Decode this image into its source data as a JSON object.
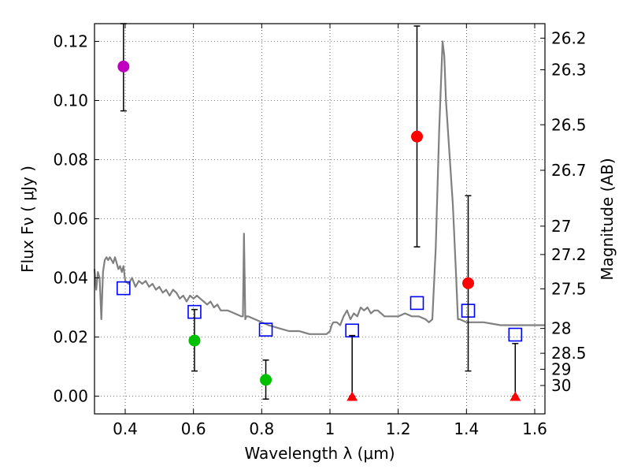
{
  "chart_data": {
    "type": "scatter",
    "xlabel": "Wavelength  λ (μm)",
    "ylabel": "Flux  Fν  ( μJy )",
    "ylabel_right": "Magnitude (AB)",
    "xlim": [
      0.31,
      1.63
    ],
    "ylim": [
      -0.006,
      0.126
    ],
    "grid": true,
    "x_ticks": [
      0.4,
      0.6,
      0.8,
      1.0,
      1.2,
      1.4,
      1.6
    ],
    "x_tick_labels": [
      "0.4",
      "0.6",
      "0.8",
      "1",
      "1.2",
      "1.4",
      "1.6"
    ],
    "y_ticks": [
      0.0,
      0.02,
      0.04,
      0.06,
      0.08,
      0.1,
      0.12
    ],
    "y_tick_labels": [
      "0.00",
      "0.02",
      "0.04",
      "0.06",
      "0.08",
      "0.10",
      "0.12"
    ],
    "mag_ticks": [
      {
        "label": "26.2",
        "flux": 0.1211
      },
      {
        "label": "26.3",
        "flux": 0.1104
      },
      {
        "label": "26.5",
        "flux": 0.0918
      },
      {
        "label": "26.7",
        "flux": 0.0764
      },
      {
        "label": "27",
        "flux": 0.0575
      },
      {
        "label": "27.2",
        "flux": 0.0479
      },
      {
        "label": "27.5",
        "flux": 0.0363
      },
      {
        "label": "28",
        "flux": 0.0229
      },
      {
        "label": "28.5",
        "flux": 0.0145
      },
      {
        "label": "29",
        "flux": 0.0091
      },
      {
        "label": "30",
        "flux": 0.0036
      }
    ],
    "series": [
      {
        "name": "template spectrum",
        "kind": "line",
        "color": "#808080",
        "x": [
          0.31,
          0.315,
          0.32,
          0.325,
          0.33,
          0.335,
          0.34,
          0.345,
          0.35,
          0.355,
          0.36,
          0.365,
          0.37,
          0.375,
          0.38,
          0.385,
          0.39,
          0.395,
          0.4,
          0.41,
          0.42,
          0.43,
          0.44,
          0.45,
          0.46,
          0.47,
          0.48,
          0.49,
          0.5,
          0.51,
          0.52,
          0.53,
          0.54,
          0.55,
          0.56,
          0.57,
          0.58,
          0.59,
          0.6,
          0.61,
          0.62,
          0.63,
          0.64,
          0.65,
          0.66,
          0.67,
          0.68,
          0.7,
          0.72,
          0.74,
          0.745,
          0.748,
          0.75,
          0.752,
          0.755,
          0.76,
          0.78,
          0.8,
          0.82,
          0.85,
          0.88,
          0.91,
          0.94,
          0.97,
          0.99,
          1.0,
          1.005,
          1.01,
          1.02,
          1.03,
          1.04,
          1.05,
          1.06,
          1.07,
          1.08,
          1.09,
          1.1,
          1.11,
          1.12,
          1.13,
          1.14,
          1.16,
          1.18,
          1.2,
          1.22,
          1.24,
          1.26,
          1.28,
          1.29,
          1.3,
          1.31,
          1.32,
          1.33,
          1.335,
          1.34,
          1.36,
          1.37,
          1.375,
          1.38,
          1.4,
          1.45,
          1.5,
          1.55,
          1.6,
          1.63
        ],
        "y": [
          0.043,
          0.036,
          0.042,
          0.04,
          0.026,
          0.042,
          0.046,
          0.047,
          0.046,
          0.047,
          0.046,
          0.045,
          0.047,
          0.045,
          0.043,
          0.044,
          0.042,
          0.044,
          0.039,
          0.038,
          0.04,
          0.037,
          0.039,
          0.038,
          0.039,
          0.037,
          0.038,
          0.036,
          0.037,
          0.035,
          0.036,
          0.034,
          0.036,
          0.035,
          0.033,
          0.034,
          0.032,
          0.034,
          0.033,
          0.034,
          0.033,
          0.032,
          0.031,
          0.032,
          0.03,
          0.031,
          0.029,
          0.029,
          0.028,
          0.027,
          0.027,
          0.055,
          0.04,
          0.026,
          0.027,
          0.027,
          0.026,
          0.025,
          0.024,
          0.023,
          0.022,
          0.022,
          0.021,
          0.021,
          0.021,
          0.022,
          0.024,
          0.025,
          0.025,
          0.024,
          0.027,
          0.029,
          0.026,
          0.028,
          0.027,
          0.03,
          0.029,
          0.03,
          0.028,
          0.029,
          0.029,
          0.027,
          0.027,
          0.027,
          0.028,
          0.027,
          0.027,
          0.026,
          0.025,
          0.026,
          0.05,
          0.09,
          0.12,
          0.115,
          0.1,
          0.065,
          0.04,
          0.026,
          0.026,
          0.025,
          0.025,
          0.024,
          0.024,
          0.024,
          0.024
        ]
      },
      {
        "name": "model photometry",
        "kind": "open-square",
        "color": "#0000ff",
        "x": [
          0.395,
          0.603,
          0.812,
          1.065,
          1.255,
          1.405,
          1.543
        ],
        "y": [
          0.0365,
          0.0285,
          0.0225,
          0.0222,
          0.0315,
          0.0289,
          0.0208
        ]
      },
      {
        "name": "observed photometry",
        "kind": "points-with-errors",
        "points": [
          {
            "x": 0.395,
            "y": 0.1115,
            "err_low": 0.0965,
            "err_high": 0.126,
            "marker": "circle",
            "color": "#bf00bf"
          },
          {
            "x": 0.603,
            "y": 0.0188,
            "err_low": 0.0085,
            "err_high": 0.0293,
            "marker": "circle",
            "color": "#00c000"
          },
          {
            "x": 0.812,
            "y": 0.0055,
            "err_low": -0.001,
            "err_high": 0.0122,
            "marker": "circle",
            "color": "#00c000"
          },
          {
            "x": 1.065,
            "y": 0.0,
            "err_low": 0.0,
            "err_high": 0.0205,
            "marker": "triangle",
            "color": "#ff0000"
          },
          {
            "x": 1.255,
            "y": 0.0878,
            "err_low": 0.0505,
            "err_high": 0.1252,
            "marker": "circle",
            "color": "#ff0000"
          },
          {
            "x": 1.405,
            "y": 0.0382,
            "err_low": 0.0085,
            "err_high": 0.0678,
            "marker": "circle",
            "color": "#ff0000"
          },
          {
            "x": 1.543,
            "y": 0.0,
            "err_low": 0.0,
            "err_high": 0.0178,
            "marker": "triangle",
            "color": "#ff0000"
          }
        ]
      }
    ]
  }
}
